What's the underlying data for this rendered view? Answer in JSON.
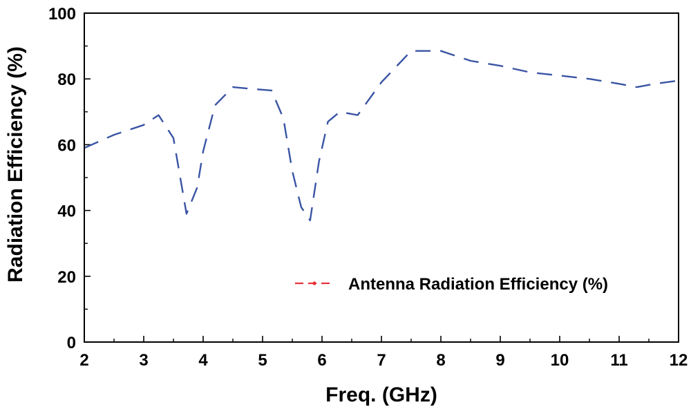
{
  "chart_data": {
    "type": "line",
    "title": "",
    "xlabel": "Freq. (GHz)",
    "ylabel": "Radiation Efficiency (%)",
    "xlim": [
      2,
      12
    ],
    "ylim": [
      0,
      100
    ],
    "x_ticks": [
      2,
      3,
      4,
      5,
      6,
      7,
      8,
      9,
      10,
      11,
      12
    ],
    "y_ticks": [
      0,
      20,
      40,
      60,
      80,
      100
    ],
    "grid": false,
    "legend_position": "lower-right",
    "series": [
      {
        "name": "Antenna Radiation Efficiency (%)",
        "color": "#3a54a4",
        "legend_marker_color": "#e8323c",
        "line_style": "dash",
        "x": [
          2.0,
          2.5,
          3.0,
          3.25,
          3.5,
          3.72,
          3.9,
          4.0,
          4.2,
          4.5,
          4.8,
          5.15,
          5.35,
          5.5,
          5.65,
          5.8,
          5.95,
          6.1,
          6.3,
          6.6,
          7.0,
          7.5,
          8.0,
          8.5,
          9.0,
          9.5,
          10.0,
          10.5,
          11.0,
          11.3,
          11.6,
          12.0
        ],
        "y": [
          59,
          63,
          66,
          69,
          62,
          39,
          47,
          58,
          72,
          77.5,
          77,
          76.5,
          68,
          52,
          41,
          37,
          55,
          67,
          70,
          69,
          79,
          88.5,
          88.5,
          85.5,
          84,
          82,
          81,
          80,
          78.5,
          77.5,
          78.5,
          79.5
        ]
      }
    ]
  }
}
